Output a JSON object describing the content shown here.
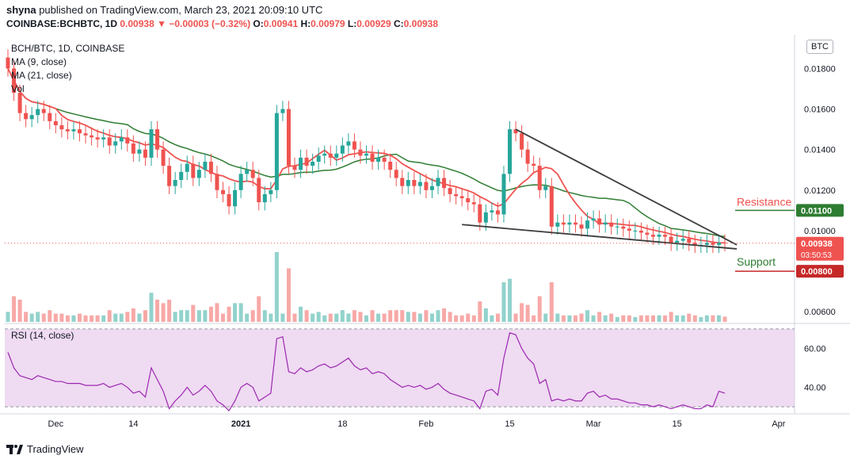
{
  "header": {
    "publisher": "shyna",
    "published_text": "published on TradingView.com, March 23, 2021 20:09:10 UTC",
    "symbol_line": "COINBASE:BCHBTC, 1D",
    "last": "0.00938",
    "change": "−0.00003 (−0.32%)",
    "open_label": "O:",
    "open": "0.00941",
    "high_label": "H:",
    "high": "0.00979",
    "low_label": "L:",
    "low": "0.00929",
    "close_label": "C:",
    "close": "0.00938"
  },
  "legend": {
    "title": "BCH/BTC, 1D, COINBASE",
    "ma9": "MA (9, close)",
    "ma21": "MA (21, close)",
    "vol": "Vol",
    "rsi": "RSI (14, close)"
  },
  "axis": {
    "currency": "BTC",
    "price_ticks": [
      "0.01800",
      "0.01600",
      "0.01400",
      "0.01200",
      "0.01000",
      "0.00600"
    ],
    "rsi_ticks": [
      "60.00",
      "40.00"
    ],
    "x_ticks": [
      "Dec",
      "14",
      "2021",
      "18",
      "Feb",
      "15",
      "Mar",
      "15",
      "Apr"
    ]
  },
  "annotations": {
    "resistance_label": "Resistance",
    "resistance_value": "0.01100",
    "support_label": "Support",
    "support_value": "0.00800",
    "current_price": "0.00938",
    "countdown": "03:50:53"
  },
  "footer": {
    "brand": "TradingView"
  },
  "colors": {
    "up": "#26a69a",
    "down": "#ef5350",
    "ma9": "#ef5350",
    "ma21": "#2e7d32",
    "rsi": "#9c27b0",
    "rsi_band": "#e1bee7",
    "resistance_box": "#2e7d32",
    "support_box": "#c62828"
  },
  "chart_data": [
    {
      "type": "candlestick",
      "title": "BCH/BTC, 1D, COINBASE",
      "ylim": [
        0.0055,
        0.0195
      ],
      "dates": [
        "2020-11-23",
        "2020-11-24",
        "2020-11-25",
        "2020-11-26",
        "2020-11-27",
        "2020-11-28",
        "2020-11-29",
        "2020-11-30",
        "2020-12-01",
        "2020-12-02",
        "2020-12-03",
        "2020-12-04",
        "2020-12-05",
        "2020-12-06",
        "2020-12-07",
        "2020-12-08",
        "2020-12-09",
        "2020-12-10",
        "2020-12-11",
        "2020-12-12",
        "2020-12-13",
        "2020-12-14",
        "2020-12-15",
        "2020-12-16",
        "2020-12-17",
        "2020-12-18",
        "2020-12-19",
        "2020-12-20",
        "2020-12-21",
        "2020-12-22",
        "2020-12-23",
        "2020-12-24",
        "2020-12-25",
        "2020-12-26",
        "2020-12-27",
        "2020-12-28",
        "2020-12-29",
        "2020-12-30",
        "2020-12-31",
        "2021-01-01",
        "2021-01-02",
        "2021-01-03",
        "2021-01-04",
        "2021-01-05",
        "2021-01-06",
        "2021-01-07",
        "2021-01-08",
        "2021-01-09",
        "2021-01-10",
        "2021-01-11",
        "2021-01-12",
        "2021-01-13",
        "2021-01-14",
        "2021-01-15",
        "2021-01-16",
        "2021-01-17",
        "2021-01-18",
        "2021-01-19",
        "2021-01-20",
        "2021-01-21",
        "2021-01-22",
        "2021-01-23",
        "2021-01-24",
        "2021-01-25",
        "2021-01-26",
        "2021-01-27",
        "2021-01-28",
        "2021-01-29",
        "2021-01-30",
        "2021-01-31",
        "2021-02-01",
        "2021-02-02",
        "2021-02-03",
        "2021-02-04",
        "2021-02-05",
        "2021-02-06",
        "2021-02-07",
        "2021-02-08",
        "2021-02-09",
        "2021-02-10",
        "2021-02-11",
        "2021-02-12",
        "2021-02-13",
        "2021-02-14",
        "2021-02-15",
        "2021-02-16",
        "2021-02-17",
        "2021-02-18",
        "2021-02-19",
        "2021-02-20",
        "2021-02-21",
        "2021-02-22",
        "2021-02-23",
        "2021-02-24",
        "2021-02-25",
        "2021-02-26",
        "2021-02-27",
        "2021-02-28",
        "2021-03-01",
        "2021-03-02",
        "2021-03-03",
        "2021-03-04",
        "2021-03-05",
        "2021-03-06",
        "2021-03-07",
        "2021-03-08",
        "2021-03-09",
        "2021-03-10",
        "2021-03-11",
        "2021-03-12",
        "2021-03-13",
        "2021-03-14",
        "2021-03-15",
        "2021-03-16",
        "2021-03-17",
        "2021-03-18",
        "2021-03-19",
        "2021-03-20",
        "2021-03-21",
        "2021-03-22",
        "2021-03-23"
      ],
      "close": [
        0.018,
        0.0168,
        0.0158,
        0.0155,
        0.0157,
        0.016,
        0.0158,
        0.0154,
        0.0152,
        0.015,
        0.0149,
        0.015,
        0.0148,
        0.0147,
        0.0146,
        0.0145,
        0.0146,
        0.0142,
        0.0144,
        0.0146,
        0.0143,
        0.0138,
        0.014,
        0.0136,
        0.015,
        0.014,
        0.0132,
        0.0122,
        0.0125,
        0.0129,
        0.0133,
        0.0126,
        0.013,
        0.0134,
        0.0128,
        0.012,
        0.0118,
        0.0112,
        0.012,
        0.0128,
        0.013,
        0.0126,
        0.0114,
        0.0118,
        0.012,
        0.0158,
        0.016,
        0.0132,
        0.013,
        0.0136,
        0.0132,
        0.0134,
        0.0137,
        0.0138,
        0.0136,
        0.0138,
        0.0142,
        0.0144,
        0.014,
        0.0137,
        0.0138,
        0.0134,
        0.0136,
        0.0134,
        0.013,
        0.0126,
        0.0122,
        0.0125,
        0.0122,
        0.0124,
        0.012,
        0.0122,
        0.0126,
        0.0121,
        0.0118,
        0.0117,
        0.0116,
        0.0114,
        0.0113,
        0.0104,
        0.0109,
        0.011,
        0.0108,
        0.0128,
        0.015,
        0.0148,
        0.014,
        0.0133,
        0.0132,
        0.012,
        0.0122,
        0.0102,
        0.0104,
        0.0103,
        0.0104,
        0.0103,
        0.0101,
        0.0105,
        0.0106,
        0.0103,
        0.0104,
        0.0102,
        0.0102,
        0.0101,
        0.01,
        0.01,
        0.0099,
        0.0098,
        0.0097,
        0.0098,
        0.0097,
        0.0094,
        0.0095,
        0.0096,
        0.0094,
        0.0093,
        0.0093,
        0.0094,
        0.0093,
        0.00941,
        0.00938
      ],
      "ma9_end": 0.0095,
      "ma21_end": 0.0096,
      "resistance_line": {
        "from": [
          "2021-02-16",
          0.015
        ],
        "to": [
          "2021-03-25",
          0.0093
        ]
      },
      "support_line": {
        "from": [
          "2021-02-07",
          0.0103
        ],
        "to": [
          "2021-03-25",
          0.0091
        ]
      }
    },
    {
      "type": "line",
      "title": "RSI (14, close)",
      "ylim": [
        28,
        72
      ],
      "band": [
        30,
        70
      ],
      "values": [
        58,
        50,
        46,
        45,
        44,
        46,
        45,
        44,
        43,
        43,
        42,
        42,
        42,
        41,
        41,
        41,
        42,
        40,
        41,
        42,
        40,
        37,
        38,
        35,
        50,
        44,
        38,
        29,
        33,
        36,
        40,
        36,
        38,
        41,
        38,
        33,
        31,
        28,
        33,
        40,
        42,
        40,
        33,
        35,
        37,
        65,
        66,
        48,
        47,
        50,
        48,
        49,
        51,
        52,
        50,
        51,
        53,
        55,
        51,
        49,
        50,
        47,
        48,
        47,
        44,
        42,
        40,
        41,
        40,
        41,
        39,
        40,
        42,
        39,
        37,
        36,
        35,
        34,
        33,
        29,
        38,
        39,
        36,
        55,
        68,
        67,
        60,
        55,
        52,
        42,
        44,
        33,
        34,
        33,
        34,
        33,
        33,
        37,
        38,
        35,
        36,
        34,
        34,
        33,
        32,
        32,
        31,
        31,
        30,
        31,
        30,
        29,
        30,
        31,
        30,
        29,
        29,
        31,
        30,
        38,
        37
      ]
    }
  ]
}
